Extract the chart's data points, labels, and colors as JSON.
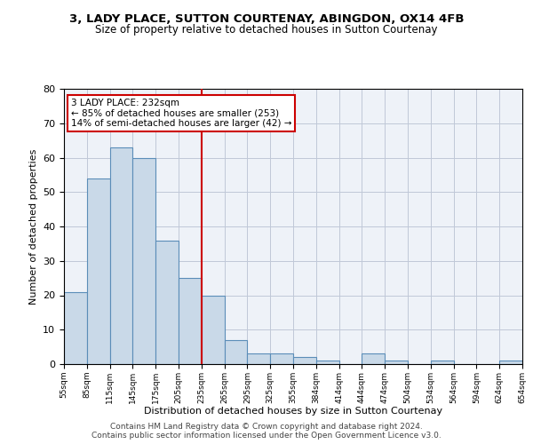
{
  "title": "3, LADY PLACE, SUTTON COURTENAY, ABINGDON, OX14 4FB",
  "subtitle": "Size of property relative to detached houses in Sutton Courtenay",
  "xlabel": "Distribution of detached houses by size in Sutton Courtenay",
  "ylabel": "Number of detached properties",
  "bar_values": [
    21,
    54,
    63,
    60,
    36,
    25,
    20,
    7,
    3,
    3,
    2,
    1,
    0,
    3,
    1,
    0,
    1,
    0,
    0,
    1
  ],
  "bin_labels": [
    "55sqm",
    "85sqm",
    "115sqm",
    "145sqm",
    "175sqm",
    "205sqm",
    "235sqm",
    "265sqm",
    "295sqm",
    "325sqm",
    "355sqm",
    "384sqm",
    "414sqm",
    "444sqm",
    "474sqm",
    "504sqm",
    "534sqm",
    "564sqm",
    "594sqm",
    "624sqm",
    "654sqm"
  ],
  "bar_color": "#c9d9e8",
  "bar_edge_color": "#5b8db8",
  "vline_x": 5.5,
  "vline_color": "#cc0000",
  "annotation_text": "3 LADY PLACE: 232sqm\n← 85% of detached houses are smaller (253)\n14% of semi-detached houses are larger (42) →",
  "annotation_box_color": "#cc0000",
  "ylim": [
    0,
    80
  ],
  "yticks": [
    0,
    10,
    20,
    30,
    40,
    50,
    60,
    70,
    80
  ],
  "grid_color": "#c0c8d8",
  "bg_color": "#eef2f8",
  "footer1": "Contains HM Land Registry data © Crown copyright and database right 2024.",
  "footer2": "Contains public sector information licensed under the Open Government Licence v3.0."
}
